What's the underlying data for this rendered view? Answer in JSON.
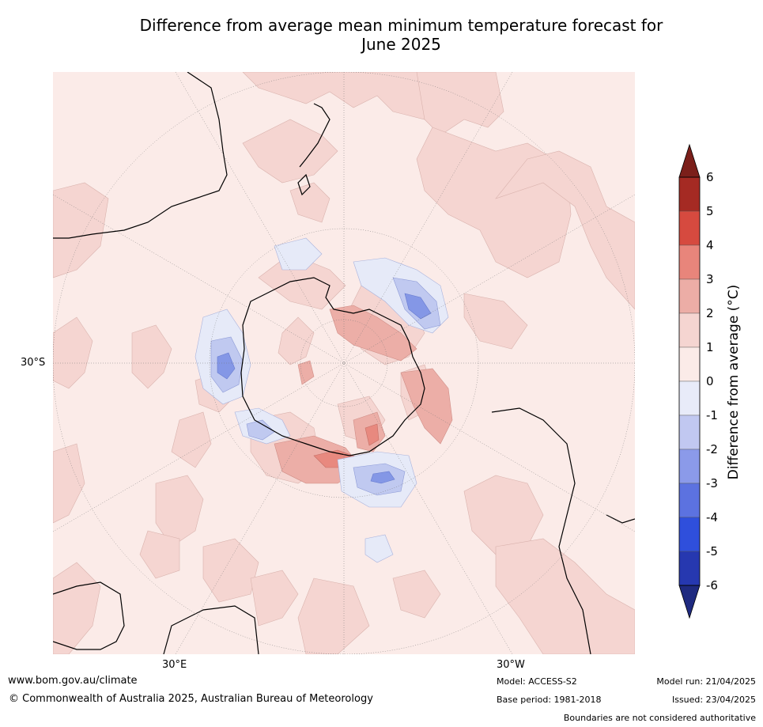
{
  "title": {
    "line1": "Difference from average mean minimum temperature forecast for",
    "line2": "June 2025"
  },
  "map": {
    "projection": "south polar stereographic",
    "lat_label": "30°S",
    "lon_labels": [
      "30°E",
      "30°W"
    ],
    "ocean_color": "#fbebe8",
    "colors": {
      "light_warm": "#f5d5d1",
      "warm2": "#ecaea7",
      "warm3": "#e8897f",
      "cool1": "#e6eaf8",
      "cool2": "#c0c9f0",
      "cool3": "#8497e6",
      "coast": "#000000",
      "border": "#7a7a7a"
    }
  },
  "colorbar": {
    "label": "Difference from average (°C)",
    "ticks": [
      "6",
      "5",
      "4",
      "3",
      "2",
      "1",
      "0",
      "-1",
      "-2",
      "-3",
      "-4",
      "-5",
      "-6"
    ],
    "bins": [
      {
        "range": "5 to 6",
        "color": "#a52a23"
      },
      {
        "range": "4 to 5",
        "color": "#d64a3f"
      },
      {
        "range": "3 to 4",
        "color": "#e8857b"
      },
      {
        "range": "2 to 3",
        "color": "#ecada6"
      },
      {
        "range": "1 to 2",
        "color": "#f5d5d1"
      },
      {
        "range": "0 to 1",
        "color": "#fbebe8"
      },
      {
        "range": "-1 to 0",
        "color": "#e8ebf9"
      },
      {
        "range": "-2 to -1",
        "color": "#c1c8f1"
      },
      {
        "range": "-3 to -2",
        "color": "#8b9ae9"
      },
      {
        "range": "-4 to -3",
        "color": "#5c72e0"
      },
      {
        "range": "-5 to -4",
        "color": "#2f4fdc"
      },
      {
        "range": "-6 to -5",
        "color": "#2638b0"
      }
    ],
    "over_color": "#7b1f1a",
    "under_color": "#1f2a80"
  },
  "footer": {
    "website": "www.bom.gov.au/climate",
    "copyright": "© Commonwealth of Australia 2025, Australian Bureau of Meteorology",
    "model": "Model: ACCESS-S2",
    "base_period": "Base period: 1981-2018",
    "model_run": "Model run: 21/04/2025",
    "issued": "Issued: 23/04/2025",
    "disclaimer": "Boundaries are not considered authoritative"
  }
}
